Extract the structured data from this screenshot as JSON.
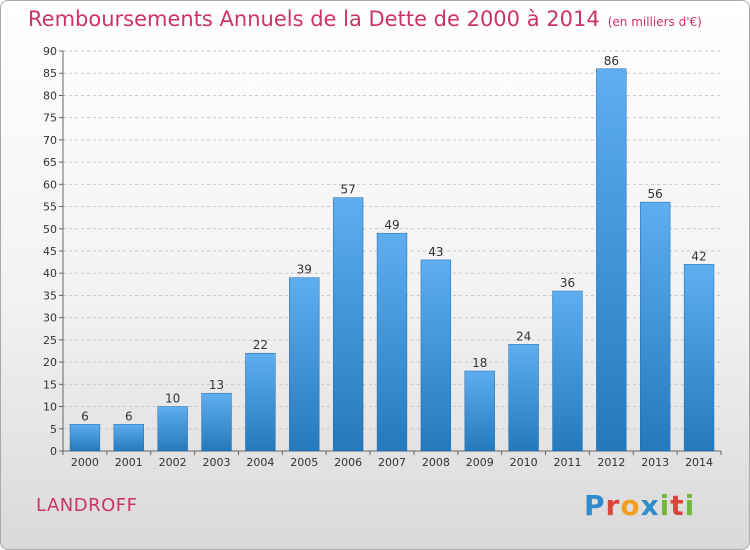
{
  "header": {
    "title": "Remboursements Annuels de la Dette de 2000 à 2014",
    "subtitle": "(en milliers d'€)"
  },
  "footer": {
    "commune": "LANDROFF",
    "logo_letters": [
      "P",
      "r",
      "o",
      "x",
      "i",
      "t",
      "i"
    ],
    "logo_colors": [
      "#2e8bcc",
      "#d6473a",
      "#f0a020",
      "#2e8bcc",
      "#72b83e",
      "#d6473a",
      "#72b83e"
    ]
  },
  "colors": {
    "bar_top": "#5eaef0",
    "bar_bottom": "#2479bd",
    "title": "#cc3366"
  },
  "chart_data": {
    "type": "bar",
    "title": "Remboursements Annuels de la Dette de 2000 à 2014",
    "subtitle": "(en milliers d'€)",
    "categories": [
      "2000",
      "2001",
      "2002",
      "2003",
      "2004",
      "2005",
      "2006",
      "2007",
      "2008",
      "2009",
      "2010",
      "2011",
      "2012",
      "2013",
      "2014"
    ],
    "values": [
      6,
      6,
      10,
      13,
      22,
      39,
      57,
      49,
      43,
      18,
      24,
      36,
      86,
      56,
      42
    ],
    "ylim": [
      0,
      90
    ],
    "yticks": [
      0,
      5,
      10,
      15,
      20,
      25,
      30,
      35,
      40,
      45,
      50,
      55,
      60,
      65,
      70,
      75,
      80,
      85,
      90
    ],
    "grid": "horizontal-dashed",
    "data_labels": true
  }
}
